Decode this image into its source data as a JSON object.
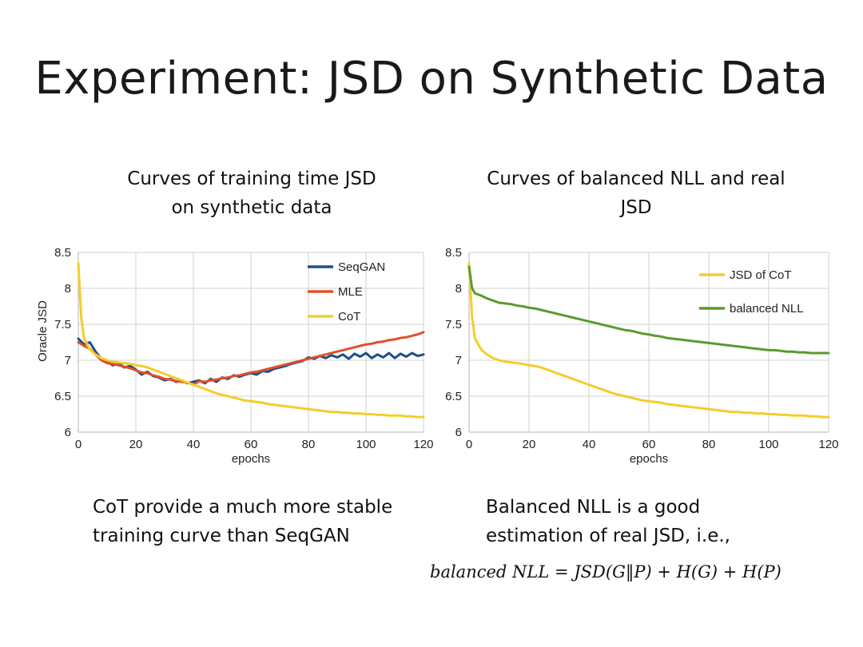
{
  "slide": {
    "title": "Experiment: JSD on Synthetic Data",
    "left_subtitle": [
      "Curves of training time JSD",
      "on synthetic data"
    ],
    "right_subtitle": [
      "Curves of balanced NLL and real",
      "JSD"
    ],
    "left_caption": [
      "CoT provide a much more stable",
      "training curve than SeqGAN"
    ],
    "right_caption": [
      "Balanced NLL is a good",
      "estimation of real JSD, i.e.,"
    ],
    "formula": "balanced NLL = JSD(G‖P) + H(G) + H(P)"
  },
  "chart_data": [
    {
      "type": "line",
      "title": "",
      "xlabel": "epochs",
      "ylabel": "Oracle JSD",
      "xlim": [
        0,
        120
      ],
      "ylim": [
        6,
        8.5
      ],
      "xticks": [
        "0",
        "20",
        "40",
        "60",
        "80",
        "100",
        "120"
      ],
      "yticks": [
        "6",
        "6.5",
        "7",
        "7.5",
        "8",
        "8.5"
      ],
      "grid": true,
      "legend_position": "top-right",
      "series": [
        {
          "name": "SeqGAN",
          "color": "#1f4e89",
          "x": [
            0,
            2,
            4,
            6,
            8,
            10,
            12,
            14,
            16,
            18,
            20,
            22,
            24,
            26,
            28,
            30,
            32,
            34,
            36,
            38,
            40,
            42,
            44,
            46,
            48,
            50,
            52,
            54,
            56,
            58,
            60,
            62,
            64,
            66,
            68,
            70,
            72,
            74,
            76,
            78,
            80,
            82,
            84,
            86,
            88,
            90,
            92,
            94,
            96,
            98,
            100,
            102,
            104,
            106,
            108,
            110,
            112,
            114,
            116,
            118,
            120
          ],
          "y": [
            7.3,
            7.22,
            7.25,
            7.12,
            7.02,
            6.98,
            6.93,
            6.96,
            6.9,
            6.92,
            6.87,
            6.8,
            6.84,
            6.78,
            6.76,
            6.72,
            6.74,
            6.7,
            6.72,
            6.68,
            6.7,
            6.72,
            6.68,
            6.74,
            6.7,
            6.76,
            6.74,
            6.79,
            6.77,
            6.8,
            6.82,
            6.8,
            6.85,
            6.84,
            6.88,
            6.9,
            6.92,
            6.95,
            6.97,
            6.99,
            7.04,
            7.02,
            7.06,
            7.03,
            7.07,
            7.04,
            7.08,
            7.02,
            7.09,
            7.05,
            7.1,
            7.03,
            7.08,
            7.04,
            7.1,
            7.03,
            7.09,
            7.05,
            7.1,
            7.06,
            7.08
          ]
        },
        {
          "name": "MLE",
          "color": "#e0502a",
          "x": [
            0,
            2,
            4,
            6,
            8,
            10,
            12,
            14,
            16,
            18,
            20,
            22,
            24,
            26,
            28,
            30,
            32,
            34,
            36,
            38,
            40,
            42,
            44,
            46,
            48,
            50,
            52,
            54,
            56,
            58,
            60,
            62,
            64,
            66,
            68,
            70,
            72,
            74,
            76,
            78,
            80,
            82,
            84,
            86,
            88,
            90,
            92,
            94,
            96,
            98,
            100,
            102,
            104,
            106,
            108,
            110,
            112,
            114,
            116,
            118,
            120
          ],
          "y": [
            7.25,
            7.2,
            7.16,
            7.08,
            7.0,
            6.96,
            6.95,
            6.93,
            6.91,
            6.89,
            6.86,
            6.83,
            6.82,
            6.79,
            6.77,
            6.74,
            6.73,
            6.71,
            6.7,
            6.69,
            6.66,
            6.71,
            6.7,
            6.72,
            6.73,
            6.75,
            6.76,
            6.78,
            6.79,
            6.81,
            6.83,
            6.84,
            6.86,
            6.88,
            6.9,
            6.92,
            6.94,
            6.96,
            6.98,
            7.0,
            7.02,
            7.04,
            7.06,
            7.08,
            7.1,
            7.12,
            7.14,
            7.16,
            7.18,
            7.2,
            7.22,
            7.23,
            7.25,
            7.26,
            7.28,
            7.29,
            7.31,
            7.32,
            7.34,
            7.36,
            7.39
          ]
        },
        {
          "name": "CoT",
          "color": "#f5cd2a",
          "x": [
            0,
            1,
            2,
            4,
            6,
            8,
            10,
            12,
            14,
            16,
            18,
            20,
            22,
            24,
            26,
            28,
            30,
            32,
            34,
            36,
            38,
            40,
            42,
            44,
            46,
            48,
            50,
            52,
            54,
            56,
            58,
            60,
            62,
            64,
            66,
            68,
            70,
            72,
            74,
            76,
            78,
            80,
            82,
            84,
            86,
            88,
            90,
            92,
            94,
            96,
            98,
            100,
            102,
            104,
            106,
            108,
            110,
            112,
            114,
            116,
            118,
            120
          ],
          "y": [
            8.35,
            7.6,
            7.3,
            7.15,
            7.08,
            7.03,
            7.0,
            6.98,
            6.97,
            6.96,
            6.95,
            6.93,
            6.92,
            6.9,
            6.87,
            6.84,
            6.81,
            6.78,
            6.75,
            6.72,
            6.69,
            6.66,
            6.63,
            6.6,
            6.57,
            6.54,
            6.52,
            6.5,
            6.48,
            6.46,
            6.44,
            6.43,
            6.42,
            6.41,
            6.39,
            6.38,
            6.37,
            6.36,
            6.35,
            6.34,
            6.33,
            6.32,
            6.31,
            6.3,
            6.29,
            6.28,
            6.28,
            6.27,
            6.27,
            6.26,
            6.26,
            6.25,
            6.25,
            6.24,
            6.24,
            6.23,
            6.23,
            6.23,
            6.22,
            6.22,
            6.21,
            6.21
          ]
        }
      ]
    },
    {
      "type": "line",
      "title": "",
      "xlabel": "epochs",
      "ylabel": "",
      "xlim": [
        0,
        120
      ],
      "ylim": [
        6,
        8.5
      ],
      "xticks": [
        "0",
        "20",
        "40",
        "60",
        "80",
        "100",
        "120"
      ],
      "yticks": [
        "6",
        "6.5",
        "7",
        "7.5",
        "8",
        "8.5"
      ],
      "grid": true,
      "legend_position": "top-right",
      "series": [
        {
          "name": "JSD of CoT",
          "color": "#f5cd2a",
          "x": [
            0,
            1,
            2,
            4,
            6,
            8,
            10,
            12,
            14,
            16,
            18,
            20,
            22,
            24,
            26,
            28,
            30,
            32,
            34,
            36,
            38,
            40,
            42,
            44,
            46,
            48,
            50,
            52,
            54,
            56,
            58,
            60,
            62,
            64,
            66,
            68,
            70,
            72,
            74,
            76,
            78,
            80,
            82,
            84,
            86,
            88,
            90,
            92,
            94,
            96,
            98,
            100,
            102,
            104,
            106,
            108,
            110,
            112,
            114,
            116,
            118,
            120
          ],
          "y": [
            8.35,
            7.6,
            7.3,
            7.15,
            7.08,
            7.03,
            7.0,
            6.98,
            6.97,
            6.96,
            6.95,
            6.93,
            6.92,
            6.9,
            6.87,
            6.84,
            6.81,
            6.78,
            6.75,
            6.72,
            6.69,
            6.66,
            6.63,
            6.6,
            6.57,
            6.54,
            6.52,
            6.5,
            6.48,
            6.46,
            6.44,
            6.43,
            6.42,
            6.41,
            6.39,
            6.38,
            6.37,
            6.36,
            6.35,
            6.34,
            6.33,
            6.32,
            6.31,
            6.3,
            6.29,
            6.28,
            6.28,
            6.27,
            6.27,
            6.26,
            6.26,
            6.25,
            6.25,
            6.24,
            6.24,
            6.23,
            6.23,
            6.23,
            6.22,
            6.22,
            6.21,
            6.21
          ]
        },
        {
          "name": "balanced NLL",
          "color": "#5a9a2e",
          "x": [
            0,
            1,
            2,
            4,
            6,
            8,
            10,
            12,
            14,
            16,
            18,
            20,
            22,
            24,
            26,
            28,
            30,
            32,
            34,
            36,
            38,
            40,
            42,
            44,
            46,
            48,
            50,
            52,
            54,
            56,
            58,
            60,
            62,
            64,
            66,
            68,
            70,
            72,
            74,
            76,
            78,
            80,
            82,
            84,
            86,
            88,
            90,
            92,
            94,
            96,
            98,
            100,
            102,
            104,
            106,
            108,
            110,
            112,
            114,
            116,
            118,
            120
          ],
          "y": [
            8.3,
            8.0,
            7.93,
            7.9,
            7.86,
            7.83,
            7.8,
            7.79,
            7.78,
            7.76,
            7.75,
            7.73,
            7.72,
            7.7,
            7.68,
            7.66,
            7.64,
            7.62,
            7.6,
            7.58,
            7.56,
            7.54,
            7.52,
            7.5,
            7.48,
            7.46,
            7.44,
            7.42,
            7.41,
            7.39,
            7.37,
            7.36,
            7.34,
            7.33,
            7.31,
            7.3,
            7.29,
            7.28,
            7.27,
            7.26,
            7.25,
            7.24,
            7.23,
            7.22,
            7.21,
            7.2,
            7.19,
            7.18,
            7.17,
            7.16,
            7.15,
            7.14,
            7.14,
            7.13,
            7.12,
            7.12,
            7.11,
            7.11,
            7.1,
            7.1,
            7.1,
            7.1
          ]
        }
      ]
    }
  ]
}
